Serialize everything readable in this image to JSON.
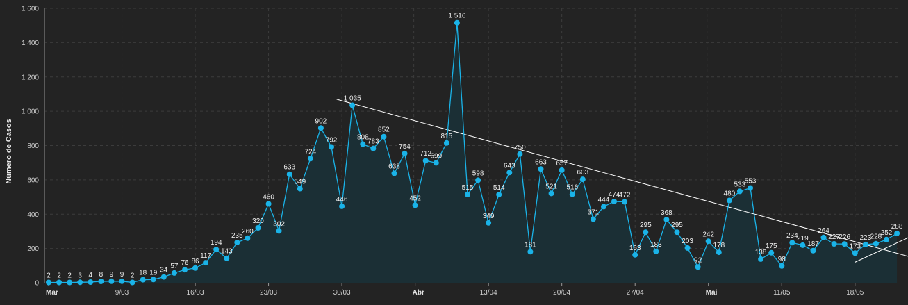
{
  "chart_data": {
    "type": "line",
    "ylabel": "Número de Casos",
    "ylim": [
      0,
      1600
    ],
    "yticks": [
      0,
      200,
      400,
      600,
      800,
      1000,
      1200,
      1400,
      1600
    ],
    "ytick_labels": [
      "0",
      "200",
      "400",
      "600",
      "800",
      "1 000",
      "1 200",
      "1 400",
      "1 600"
    ],
    "grid": true,
    "x_ticks": [
      {
        "label": "Mar",
        "index": 0,
        "month": true
      },
      {
        "label": "9/03",
        "index": 7,
        "month": false
      },
      {
        "label": "16/03",
        "index": 14,
        "month": false
      },
      {
        "label": "23/03",
        "index": 21,
        "month": false
      },
      {
        "label": "30/03",
        "index": 28,
        "month": false
      },
      {
        "label": "Abr",
        "index": 35,
        "month": true
      },
      {
        "label": "13/04",
        "index": 42,
        "month": false
      },
      {
        "label": "20/04",
        "index": 49,
        "month": false
      },
      {
        "label": "27/04",
        "index": 56,
        "month": false
      },
      {
        "label": "Mai",
        "index": 63,
        "month": true
      },
      {
        "label": "11/05",
        "index": 70,
        "month": false
      },
      {
        "label": "18/05",
        "index": 77,
        "month": false
      }
    ],
    "series": [
      {
        "values": [
          2,
          2,
          2,
          3,
          4,
          8,
          9,
          9,
          2,
          18,
          19,
          34,
          57,
          76,
          86,
          117,
          194,
          143,
          235,
          260,
          320,
          460,
          302,
          633,
          549,
          724,
          902,
          792,
          446,
          1035,
          808,
          783,
          852,
          638,
          754,
          452,
          712,
          699,
          815,
          1516,
          515,
          598,
          349,
          514,
          643,
          750,
          181,
          663,
          521,
          657,
          516,
          603,
          371,
          444,
          474,
          472,
          163,
          295,
          183,
          368,
          295,
          203,
          92,
          242,
          178,
          480,
          533,
          553,
          138,
          175,
          98,
          234,
          219,
          187,
          264,
          227,
          226,
          173,
          223,
          228,
          252,
          288
        ],
        "labels": [
          "2",
          "2",
          "2",
          "3",
          "4",
          "8",
          "9",
          "9",
          "2",
          "18",
          "19",
          "34",
          "57",
          "76",
          "86",
          "117",
          "194",
          "143",
          "235",
          "260",
          "320",
          "460",
          "302",
          "633",
          "549",
          "724",
          "902",
          "792",
          "446",
          "1 035",
          "808",
          "783",
          "852",
          "638",
          "754",
          "452",
          "712",
          "699",
          "815",
          "1 516",
          "515",
          "598",
          "349",
          "514",
          "643",
          "750",
          "181",
          "663",
          "521",
          "657",
          "516",
          "603",
          "371",
          "444",
          "474",
          "472",
          "163",
          "295",
          "183",
          "368",
          "295",
          "203",
          "92",
          "242",
          "178",
          "480",
          "533",
          "553",
          "138",
          "175",
          "98",
          "234",
          "219",
          "187",
          "264",
          "227",
          "226",
          "173",
          "223",
          "228",
          "252",
          "288"
        ],
        "color": "#1ab3e8",
        "area_color": "#1b2f35"
      }
    ],
    "trendlines": [
      {
        "from": {
          "index": 27.5,
          "value": 1070
        },
        "to": {
          "index": 82.5,
          "value": 147
        },
        "color": "#ffffff"
      },
      {
        "from": {
          "index": 77,
          "value": 120
        },
        "to": {
          "index": 82.5,
          "value": 275
        },
        "color": "#ffffff"
      }
    ]
  }
}
